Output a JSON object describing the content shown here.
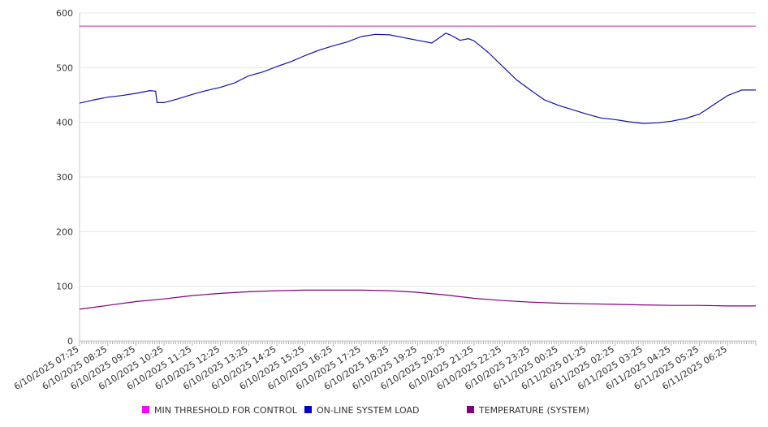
{
  "chart_data": {
    "type": "line",
    "title": "",
    "xlabel": "",
    "ylabel": "",
    "ylim": [
      0,
      600
    ],
    "y_ticks": [
      0,
      100,
      200,
      300,
      400,
      500,
      600
    ],
    "grid": "horizontal",
    "legend_position": "bottom",
    "x_tick_labels": [
      "6/10/2025 07:25",
      "6/10/2025 08:25",
      "6/10/2025 09:25",
      "6/10/2025 10:25",
      "6/10/2025 11:25",
      "6/10/2025 12:25",
      "6/10/2025 13:25",
      "6/10/2025 14:25",
      "6/10/2025 15:25",
      "6/10/2025 16:25",
      "6/10/2025 17:25",
      "6/10/2025 18:25",
      "6/10/2025 19:25",
      "6/10/2025 20:25",
      "6/10/2025 21:25",
      "6/10/2025 22:25",
      "6/10/2025 23:25",
      "6/11/2025 00:25",
      "6/11/2025 01:25",
      "6/11/2025 02:25",
      "6/11/2025 03:25",
      "6/11/2025 04:25",
      "6/11/2025 05:25",
      "6/11/2025 06:25"
    ],
    "x_hours": [
      0,
      1,
      2,
      3,
      4,
      5,
      6,
      7,
      8,
      9,
      10,
      11,
      12,
      13,
      14,
      15,
      16,
      17,
      18,
      19,
      20,
      21,
      22,
      23
    ],
    "x_span_hours": 24,
    "series": [
      {
        "name": "MIN THRESHOLD FOR CONTROL",
        "color": "#ff00ff",
        "line_color": "#c040c0",
        "x": [
          0,
          24
        ],
        "values": [
          576,
          576
        ]
      },
      {
        "name": "ON-LINE SYSTEM LOAD",
        "color": "#0000cc",
        "line_color": "#1010b0",
        "x": [
          0,
          0.5,
          1,
          1.5,
          2,
          2.5,
          2.7,
          2.75,
          3.0,
          3.5,
          4,
          4.5,
          5,
          5.5,
          6,
          6.5,
          7,
          7.5,
          8,
          8.5,
          9,
          9.5,
          10,
          10.5,
          11,
          11.5,
          12,
          12.5,
          13,
          13.15,
          13.3,
          13.5,
          13.8,
          14,
          14.5,
          15,
          15.5,
          16,
          16.5,
          17,
          17.5,
          18,
          18.5,
          19,
          19.5,
          20,
          20.5,
          21,
          21.5,
          22,
          22.5,
          23,
          23.5,
          24
        ],
        "values": [
          435,
          441,
          446,
          449,
          453,
          458,
          457,
          436,
          436,
          443,
          451,
          458,
          464,
          472,
          485,
          492,
          502,
          511,
          522,
          532,
          540,
          547,
          557,
          561,
          560,
          555,
          550,
          545,
          563,
          560,
          556,
          550,
          553,
          549,
          528,
          503,
          478,
          459,
          441,
          431,
          423,
          415,
          408,
          405,
          401,
          398,
          399,
          402,
          407,
          415,
          432,
          449,
          459,
          459
        ]
      },
      {
        "name": "TEMPERATURE (SYSTEM)",
        "color": "#800080",
        "line_color": "#800080",
        "x": [
          0,
          1,
          2,
          3,
          4,
          5,
          6,
          7,
          8,
          9,
          10,
          11,
          12,
          13,
          14,
          15,
          16,
          17,
          18,
          19,
          20,
          21,
          22,
          23,
          24
        ],
        "values": [
          58,
          65,
          72,
          77,
          83,
          87,
          90,
          92,
          93,
          93,
          93,
          92,
          89,
          84,
          78,
          74,
          71,
          69,
          68,
          67,
          66,
          65,
          65,
          64,
          64
        ]
      }
    ]
  }
}
